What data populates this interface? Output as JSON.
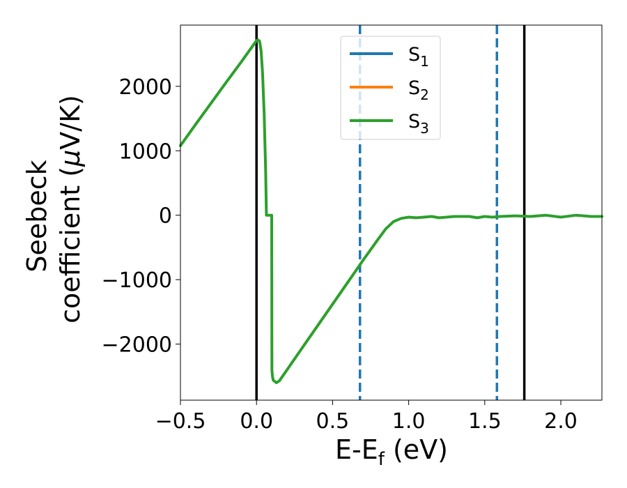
{
  "chart_data": {
    "type": "line",
    "xlabel": "E-E",
    "xlabel_sub": "f",
    "xlabel_unit": " (eV)",
    "ylabel_line1": "Seebeck",
    "ylabel_line2_a": "coefficient  (",
    "ylabel_line2_mu": "μ",
    "ylabel_line2_b": "V/K)",
    "xlim": [
      -0.5,
      2.27
    ],
    "ylim": [
      -2870,
      2950
    ],
    "xticks": [
      {
        "value": -0.5,
        "label": "−0.5"
      },
      {
        "value": 0.0,
        "label": "0.0"
      },
      {
        "value": 0.5,
        "label": "0.5"
      },
      {
        "value": 1.0,
        "label": "1.0"
      },
      {
        "value": 1.5,
        "label": "1.5"
      },
      {
        "value": 2.0,
        "label": "2.0"
      }
    ],
    "yticks": [
      {
        "value": -2000,
        "label": "−2000"
      },
      {
        "value": -1000,
        "label": "−1000"
      },
      {
        "value": 0,
        "label": "0"
      },
      {
        "value": 1000,
        "label": "1000"
      },
      {
        "value": 2000,
        "label": "2000"
      }
    ],
    "grid": false,
    "legend_position": "top-center",
    "vlines": [
      {
        "x": 0.0,
        "color": "#000000",
        "style": "solid"
      },
      {
        "x": 1.76,
        "color": "#000000",
        "style": "solid"
      },
      {
        "x": 0.68,
        "color": "#1f77b4",
        "style": "dashed"
      },
      {
        "x": 1.58,
        "color": "#1f77b4",
        "style": "dashed"
      }
    ],
    "series": [
      {
        "name": "S",
        "sub": "1",
        "color": "#1f77b4",
        "x": [],
        "y": []
      },
      {
        "name": "S",
        "sub": "2",
        "color": "#ff7f0e",
        "x": [],
        "y": []
      },
      {
        "name": "S",
        "sub": "3",
        "color": "#2ca02c",
        "x": [
          -0.5,
          -0.4,
          -0.3,
          -0.2,
          -0.1,
          0.0,
          0.01,
          0.02,
          0.03,
          0.04,
          0.05,
          0.06,
          0.065,
          0.07,
          0.1,
          0.101,
          0.105,
          0.11,
          0.13,
          0.15,
          0.2,
          0.3,
          0.4,
          0.5,
          0.6,
          0.7,
          0.8,
          0.85,
          0.9,
          0.95,
          1.0,
          1.05,
          1.1,
          1.15,
          1.2,
          1.3,
          1.4,
          1.45,
          1.5,
          1.55,
          1.6,
          1.7,
          1.8,
          1.85,
          1.9,
          2.0,
          2.1,
          2.2,
          2.27
        ],
        "y": [
          1080,
          1410,
          1735,
          2060,
          2380,
          2710,
          2720,
          2700,
          2550,
          2200,
          1600,
          700,
          0,
          0,
          0,
          -2400,
          -2500,
          -2560,
          -2600,
          -2570,
          -2400,
          -2060,
          -1720,
          -1380,
          -1040,
          -700,
          -370,
          -210,
          -100,
          -50,
          -30,
          -40,
          -30,
          -20,
          -40,
          -20,
          -20,
          -40,
          -20,
          -30,
          -20,
          -10,
          -20,
          -10,
          0,
          -30,
          0,
          -20,
          -20
        ]
      }
    ]
  }
}
